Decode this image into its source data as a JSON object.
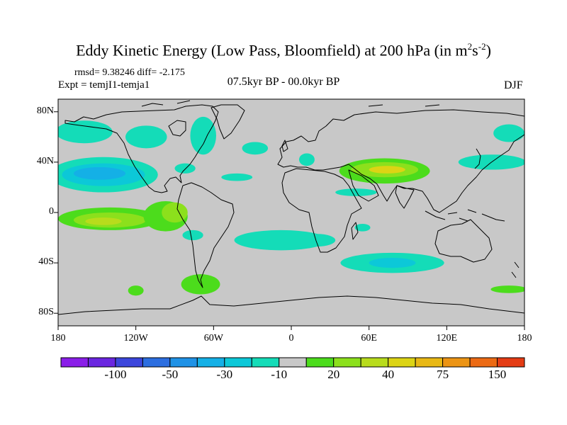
{
  "title": {
    "main": "Eddy Kinetic Energy (Low Pass, Bloomfield) at 200 hPa (in m",
    "sup1": "2",
    "s": "s",
    "sup2": "-2",
    "close": ")"
  },
  "stats": "rmsd= 9.38246 diff= -2.175",
  "experiment": "Expt = temjI1-temja1",
  "period": "07.5kyr BP - 00.0kyr BP",
  "season": "DJF",
  "lat_ticks": [
    {
      "value": 80,
      "label": "80N"
    },
    {
      "value": 40,
      "label": "40N"
    },
    {
      "value": 0,
      "label": "0"
    },
    {
      "value": -40,
      "label": "40S"
    },
    {
      "value": -80,
      "label": "80S"
    }
  ],
  "lon_ticks": [
    {
      "value": -180,
      "label": "180"
    },
    {
      "value": -120,
      "label": "120W"
    },
    {
      "value": -60,
      "label": "60W"
    },
    {
      "value": 0,
      "label": "0"
    },
    {
      "value": 60,
      "label": "60E"
    },
    {
      "value": 120,
      "label": "120E"
    },
    {
      "value": 180,
      "label": "180"
    }
  ],
  "colorbar": {
    "colors": [
      "#8a1ee8",
      "#6a26e0",
      "#3c46dc",
      "#2c6ee0",
      "#1f92e6",
      "#14b0e6",
      "#0cc8d8",
      "#14dcb8",
      "#c8c8c8",
      "#4cdc1c",
      "#8ce01c",
      "#b8dc1c",
      "#dcd414",
      "#e8b814",
      "#ec9414",
      "#ec6a14",
      "#e43c14"
    ],
    "labels": [
      {
        "boundary": 2,
        "text": "-100"
      },
      {
        "boundary": 4,
        "text": "-50"
      },
      {
        "boundary": 6,
        "text": "-30"
      },
      {
        "boundary": 8,
        "text": "-10"
      },
      {
        "boundary": 10,
        "text": "20"
      },
      {
        "boundary": 12,
        "text": "40"
      },
      {
        "boundary": 14,
        "text": "75"
      },
      {
        "boundary": 16,
        "text": "150"
      }
    ]
  },
  "colors": {
    "background": "#c8c8c8",
    "teal": "#14dcb8",
    "cyan": "#0cc8d8",
    "lightblue": "#14b0e6",
    "blue": "#2c6ee0",
    "green": "#4cdc1c",
    "lightgreen": "#8ce01c",
    "yellowgreen": "#b8dc1c",
    "yellow": "#dcd414"
  },
  "anomaly_regions": [
    {
      "lon": -145,
      "lat": 30,
      "rlon": 42,
      "rlat": 14,
      "level": "teal"
    },
    {
      "lon": -145,
      "lat": 30,
      "rlon": 32,
      "rlat": 9,
      "level": "cyan"
    },
    {
      "lon": -148,
      "lat": 31,
      "rlon": 20,
      "rlat": 5,
      "level": "lightblue"
    },
    {
      "lon": -160,
      "lat": 64,
      "rlon": 22,
      "rlat": 9,
      "level": "teal"
    },
    {
      "lon": -112,
      "lat": 60,
      "rlon": 16,
      "rlat": 9,
      "level": "teal"
    },
    {
      "lon": -68,
      "lat": 61,
      "rlon": 10,
      "rlat": 15,
      "level": "teal"
    },
    {
      "lon": -28,
      "lat": 51,
      "rlon": 10,
      "rlat": 5,
      "level": "teal"
    },
    {
      "lon": -82,
      "lat": 35,
      "rlon": 8,
      "rlat": 4,
      "level": "teal"
    },
    {
      "lon": -42,
      "lat": 28,
      "rlon": 12,
      "rlat": 3,
      "level": "teal"
    },
    {
      "lon": 12,
      "lat": 42,
      "rlon": 6,
      "rlat": 5,
      "level": "teal"
    },
    {
      "lon": 72,
      "lat": 33,
      "rlon": 35,
      "rlat": 10,
      "level": "green"
    },
    {
      "lon": 72,
      "lat": 34,
      "rlon": 26,
      "rlat": 6,
      "level": "lightgreen"
    },
    {
      "lon": 74,
      "lat": 34,
      "rlon": 14,
      "rlat": 3,
      "level": "yellow"
    },
    {
      "lon": 50,
      "lat": 16,
      "rlon": 16,
      "rlat": 3,
      "level": "teal"
    },
    {
      "lon": 155,
      "lat": 40,
      "rlon": 26,
      "rlat": 6,
      "level": "teal"
    },
    {
      "lon": 168,
      "lat": 63,
      "rlon": 12,
      "rlat": 7,
      "level": "teal"
    },
    {
      "lon": -140,
      "lat": -5,
      "rlon": 40,
      "rlat": 9,
      "level": "green"
    },
    {
      "lon": -140,
      "lat": -6,
      "rlon": 28,
      "rlat": 6,
      "level": "lightgreen"
    },
    {
      "lon": -145,
      "lat": -7,
      "rlon": 14,
      "rlat": 3,
      "level": "yellowgreen"
    },
    {
      "lon": -97,
      "lat": -3,
      "rlon": 17,
      "rlat": 12,
      "level": "green"
    },
    {
      "lon": -90,
      "lat": 0,
      "rlon": 10,
      "rlat": 8,
      "level": "lightgreen"
    },
    {
      "lon": -76,
      "lat": -18,
      "rlon": 8,
      "rlat": 4,
      "level": "teal"
    },
    {
      "lon": -8,
      "lat": -22,
      "rlon": 36,
      "rlat": 8,
      "level": "teal"
    },
    {
      "lon": 20,
      "lat": -22,
      "rlon": 14,
      "rlat": 5,
      "level": "teal"
    },
    {
      "lon": 55,
      "lat": -12,
      "rlon": 6,
      "rlat": 3,
      "level": "teal"
    },
    {
      "lon": 78,
      "lat": -40,
      "rlon": 40,
      "rlat": 8,
      "level": "teal"
    },
    {
      "lon": 78,
      "lat": -40,
      "rlon": 18,
      "rlat": 4,
      "level": "cyan"
    },
    {
      "lon": -70,
      "lat": -57,
      "rlon": 15,
      "rlat": 8,
      "level": "green"
    },
    {
      "lon": -120,
      "lat": -62,
      "rlon": 6,
      "rlat": 4,
      "level": "green"
    },
    {
      "lon": 168,
      "lat": -61,
      "rlon": 14,
      "rlat": 3,
      "level": "green"
    }
  ]
}
